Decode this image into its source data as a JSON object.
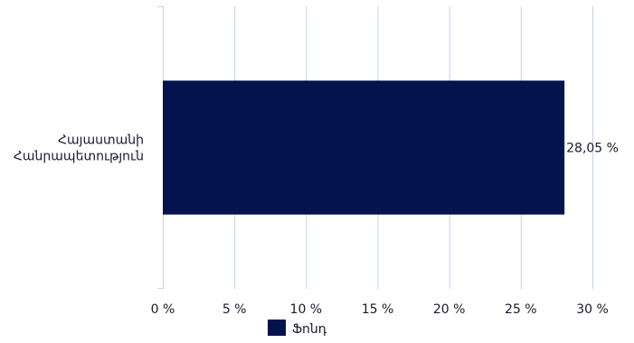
{
  "chart_data": {
    "type": "bar",
    "orientation": "horizontal",
    "categories": [
      "Հայաստանի Հանրապետություն"
    ],
    "category_lines": [
      [
        "Հայաստանի",
        "Հանրապետություն"
      ]
    ],
    "series": [
      {
        "name": "Ֆոնդ",
        "values": [
          28.05
        ],
        "value_labels": [
          "28,05 %"
        ],
        "color": "#02134d"
      }
    ],
    "x_ticks": [
      0,
      5,
      10,
      15,
      20,
      25,
      30
    ],
    "x_tick_labels": [
      "0 %",
      "5 %",
      "10 %",
      "15 %",
      "20 %",
      "25 %",
      "30 %"
    ],
    "xlim": [
      0,
      30
    ],
    "grid": "vertical",
    "grid_color": "#c5d3e3",
    "axis_color": "#c5d3e3",
    "text_color": "#1a1a2e",
    "legend": {
      "position": "bottom",
      "labels": [
        "Ֆոնդ"
      ]
    },
    "title": "",
    "xlabel": "",
    "ylabel": ""
  }
}
